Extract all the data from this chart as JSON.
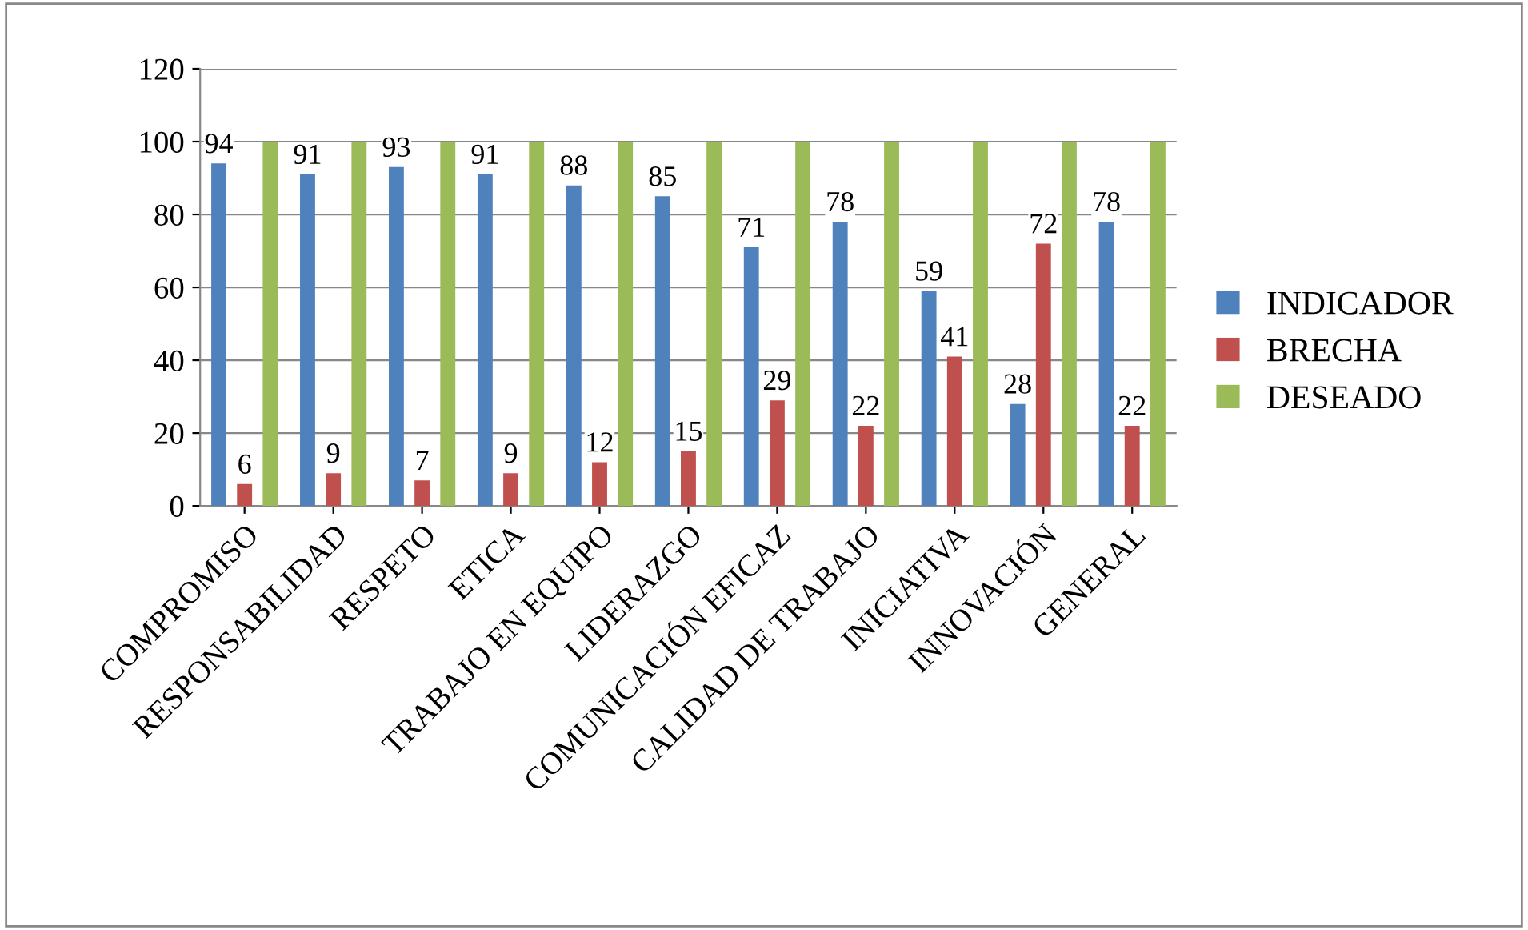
{
  "chart_data": {
    "type": "bar",
    "categories": [
      "COMPROMISO",
      "RESPONSABILIDAD",
      "RESPETO",
      "ETICA",
      "TRABAJO EN EQUIPO",
      "LIDERAZGO",
      "COMUNICACIÓN EFICAZ",
      "CALIDAD DE TRABAJO",
      "INICIATIVA",
      "INNOVACIÓN",
      "GENERAL"
    ],
    "series": [
      {
        "name": "INDICADOR",
        "color": "#4f81bd",
        "values": [
          94,
          91,
          93,
          91,
          88,
          85,
          71,
          78,
          59,
          28,
          78
        ],
        "value_labels": [
          "94",
          "91",
          "93",
          "91",
          "88",
          "85",
          "71",
          "78",
          "59",
          "28",
          "78"
        ]
      },
      {
        "name": "BRECHA",
        "color": "#c0504d",
        "values": [
          6,
          9,
          7,
          9,
          12,
          15,
          29,
          22,
          41,
          72,
          22
        ],
        "value_labels": [
          "6",
          "9",
          "7",
          "9",
          "12",
          "15",
          "29",
          "22",
          "41",
          "72",
          "22"
        ]
      },
      {
        "name": "DESEADO",
        "color": "#9bbb59",
        "values": [
          100,
          100,
          100,
          100,
          100,
          100,
          100,
          100,
          100,
          100,
          100
        ]
      }
    ],
    "ylim": [
      0,
      120
    ],
    "yticks": [
      0,
      20,
      40,
      60,
      80,
      100,
      120
    ],
    "grid": "y",
    "legend": "right"
  }
}
